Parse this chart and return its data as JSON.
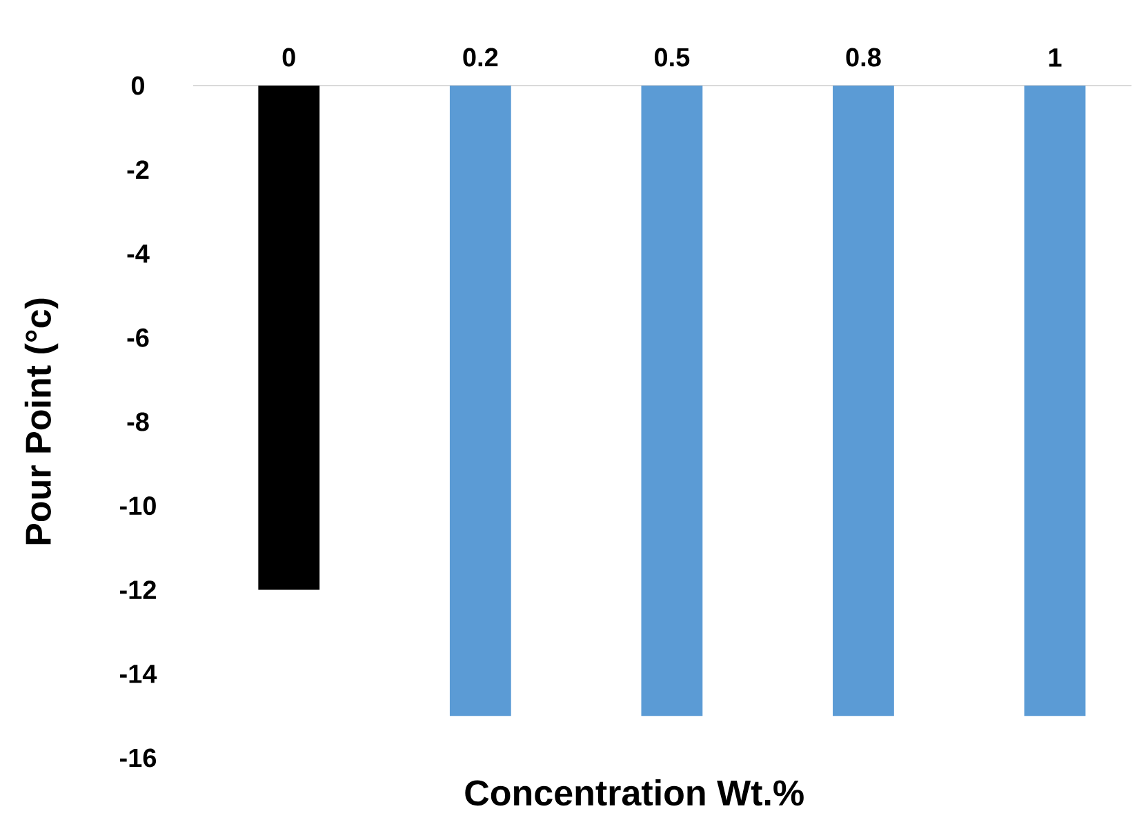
{
  "chart_data": {
    "type": "bar",
    "xlabel": "Concentration Wt.%",
    "ylabel": "Pour Point (°c)",
    "categories": [
      "0",
      "0.2",
      "0.5",
      "0.8",
      "1"
    ],
    "values": [
      -12,
      -15,
      -15,
      -15,
      -15
    ],
    "colors": [
      "#000000",
      "#5b9bd5",
      "#5b9bd5",
      "#5b9bd5",
      "#5b9bd5"
    ],
    "ylim": [
      -16,
      0
    ],
    "yticks": [
      0,
      -2,
      -4,
      -6,
      -8,
      -10,
      -12,
      -14,
      -16
    ]
  }
}
